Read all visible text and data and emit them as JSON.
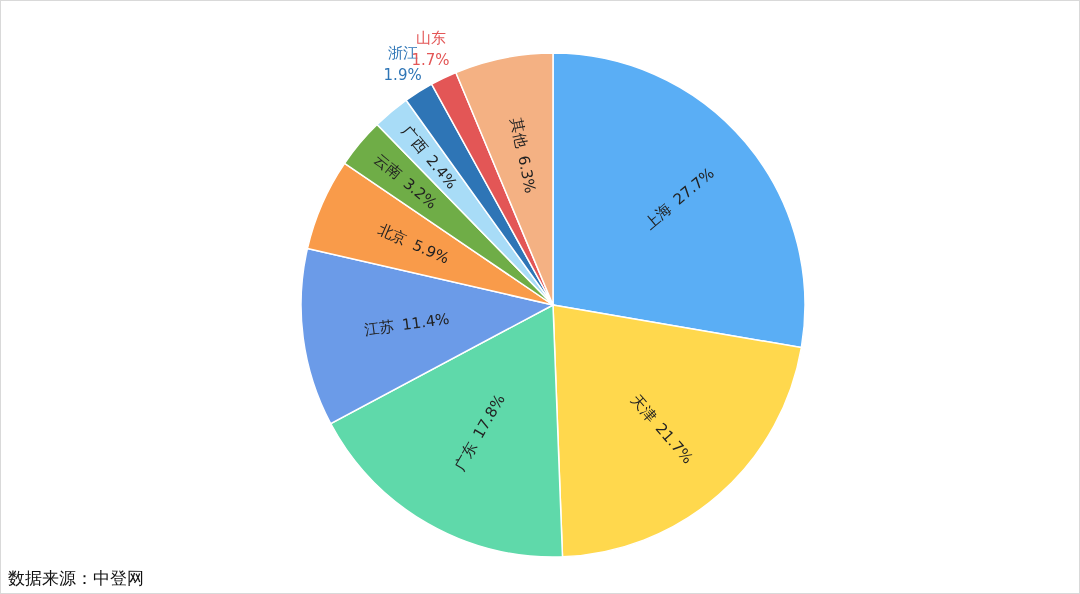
{
  "chart_data": {
    "type": "pie",
    "value_labels": [
      "27.7%",
      "21.7%",
      "17.8%",
      "11.4%",
      "5.9%",
      "3.2%",
      "2.4%",
      "1.9%",
      "1.7%",
      "6.3%"
    ],
    "categories": [
      "上海",
      "天津",
      "广东",
      "江苏",
      "北京",
      "云南",
      "广西",
      "浙江",
      "山东",
      "其他"
    ],
    "values": [
      27.7,
      21.7,
      17.8,
      11.4,
      5.9,
      3.2,
      2.4,
      1.9,
      1.7,
      6.3
    ],
    "colors": [
      "#5aaef5",
      "#ffd84d",
      "#5fd9aa",
      "#6b9be8",
      "#f99b4a",
      "#6fad47",
      "#a8dcf7",
      "#2e75b6",
      "#e35656",
      "#f4b183"
    ],
    "annotations": [
      "数据来源：中登网"
    ]
  }
}
